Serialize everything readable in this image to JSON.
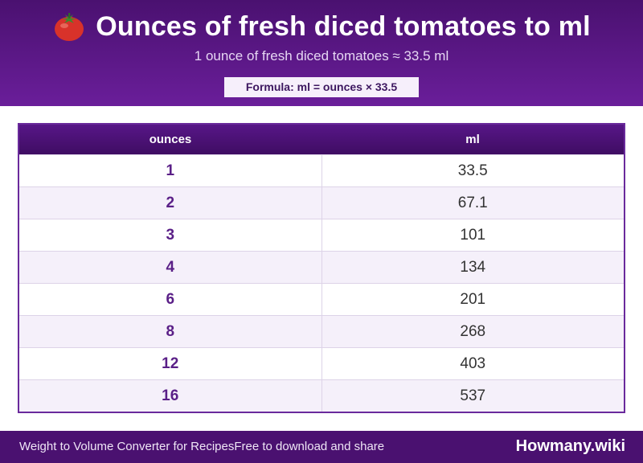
{
  "header": {
    "title": "Ounces of fresh diced tomatoes to ml",
    "icon": "tomato-icon",
    "subtitle": "1 ounce of fresh diced tomatoes ≈ 33.5 ml",
    "formula": "Formula: ml = ounces × 33.5"
  },
  "table": {
    "columns": [
      "ounces",
      "ml"
    ],
    "rows": [
      {
        "ounces": "1",
        "ml": "33.5"
      },
      {
        "ounces": "2",
        "ml": "67.1"
      },
      {
        "ounces": "3",
        "ml": "101"
      },
      {
        "ounces": "4",
        "ml": "134"
      },
      {
        "ounces": "6",
        "ml": "201"
      },
      {
        "ounces": "8",
        "ml": "268"
      },
      {
        "ounces": "12",
        "ml": "403"
      },
      {
        "ounces": "16",
        "ml": "537"
      }
    ]
  },
  "footer": {
    "left_text": "Weight to Volume Converter for RecipesFree to download and share",
    "brand": "Howmany.wiki"
  },
  "colors": {
    "header_bg": "#5a1685",
    "accent": "#6a1e9a",
    "row_alt": "#f5f0fa",
    "footer_bg": "#4a1170"
  }
}
